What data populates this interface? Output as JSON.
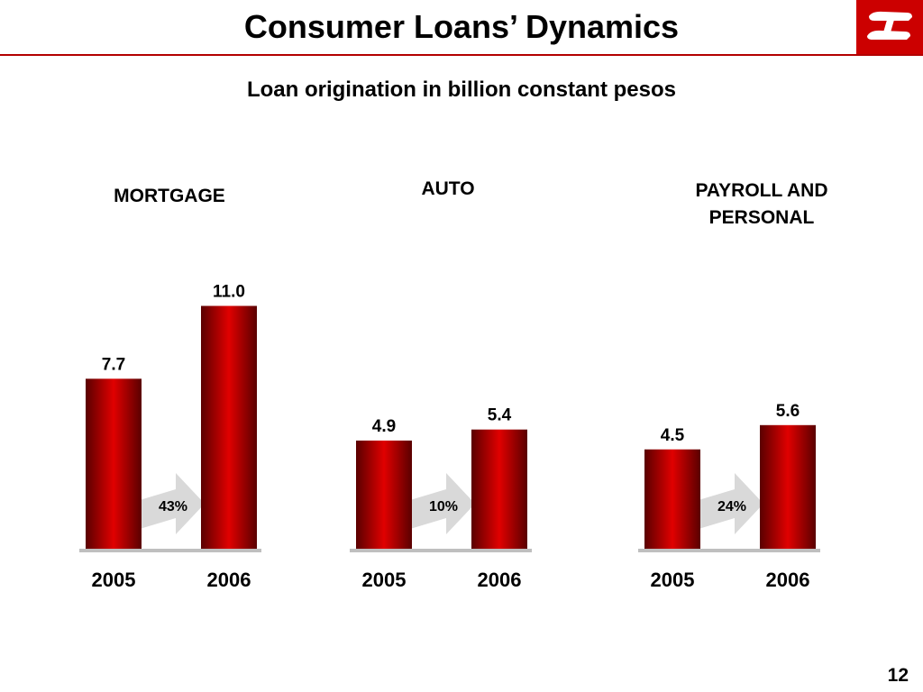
{
  "title": "Consumer Loans’ Dynamics",
  "subtitle": "Loan origination in billion constant pesos",
  "page_number": "12",
  "colors": {
    "bar_center": "#e00000",
    "bar_edge": "#5a0000",
    "accent": "#cc0000",
    "arrow": "#d9d9d9",
    "baseline": "#bfbfbf"
  },
  "logo": {
    "icon": "bank-logo-icon"
  },
  "chart_data": [
    {
      "type": "bar",
      "title": "MORTGAGE",
      "categories": [
        "2005",
        "2006"
      ],
      "values": [
        7.7,
        11.0
      ],
      "value_labels": [
        "7.7",
        "11.0"
      ],
      "growth_label": "43%",
      "ylim": [
        0,
        12
      ]
    },
    {
      "type": "bar",
      "title": "AUTO",
      "categories": [
        "2005",
        "2006"
      ],
      "values": [
        4.9,
        5.4
      ],
      "value_labels": [
        "4.9",
        "5.4"
      ],
      "growth_label": "10%",
      "ylim": [
        0,
        12
      ]
    },
    {
      "type": "bar",
      "title": "PAYROLL AND\nPERSONAL",
      "categories": [
        "2005",
        "2006"
      ],
      "values": [
        4.5,
        5.6
      ],
      "value_labels": [
        "4.5",
        "5.6"
      ],
      "growth_label": "24%",
      "ylim": [
        0,
        12
      ]
    }
  ]
}
